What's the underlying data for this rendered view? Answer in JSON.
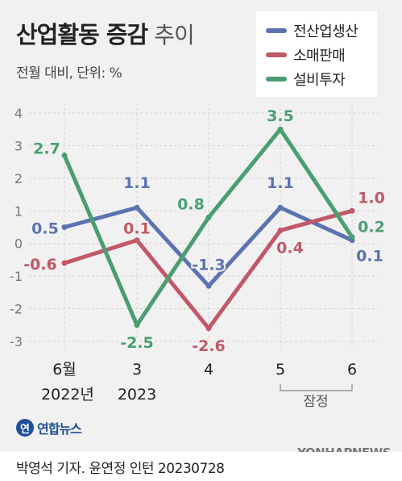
{
  "title": "산업활동 증감",
  "title_suffix": "추이",
  "subtitle": "전월 대비, 단위: %",
  "colors": {
    "series_0": "#5b74b1",
    "series_1": "#c25868",
    "series_2": "#4a9e72"
  },
  "chart_data": {
    "type": "line",
    "categories": [
      "6월",
      "3",
      "4",
      "5",
      "6"
    ],
    "category_sublabels": [
      "2022년",
      "2023",
      "",
      "",
      ""
    ],
    "bracket_label": "잠정",
    "ylim": [
      -3,
      4
    ],
    "yticks": [
      "4",
      "3",
      "2",
      "1",
      "0",
      "-1",
      "-2",
      "-3"
    ],
    "series": [
      {
        "name": "전산업생산",
        "values": [
          0.5,
          1.1,
          -1.3,
          1.1,
          0.1
        ],
        "labels": [
          "0.5",
          "1.1",
          "-1.3",
          "1.1",
          "0.1"
        ]
      },
      {
        "name": "소매판매",
        "values": [
          -0.6,
          0.1,
          -2.6,
          0.4,
          1.0
        ],
        "labels": [
          "-0.6",
          "0.1",
          "-2.6",
          "0.4",
          "1.0"
        ]
      },
      {
        "name": "설비투자",
        "values": [
          2.7,
          -2.5,
          0.8,
          3.5,
          0.2
        ],
        "labels": [
          "2.7",
          "-2.5",
          "0.8",
          "3.5",
          "0.2"
        ]
      }
    ]
  },
  "logo": {
    "mark": "연",
    "text": "연합뉴스"
  },
  "credit": "박영석 기자. 윤연정 인턴  20230728",
  "watermark": "YONHAPNEWS"
}
